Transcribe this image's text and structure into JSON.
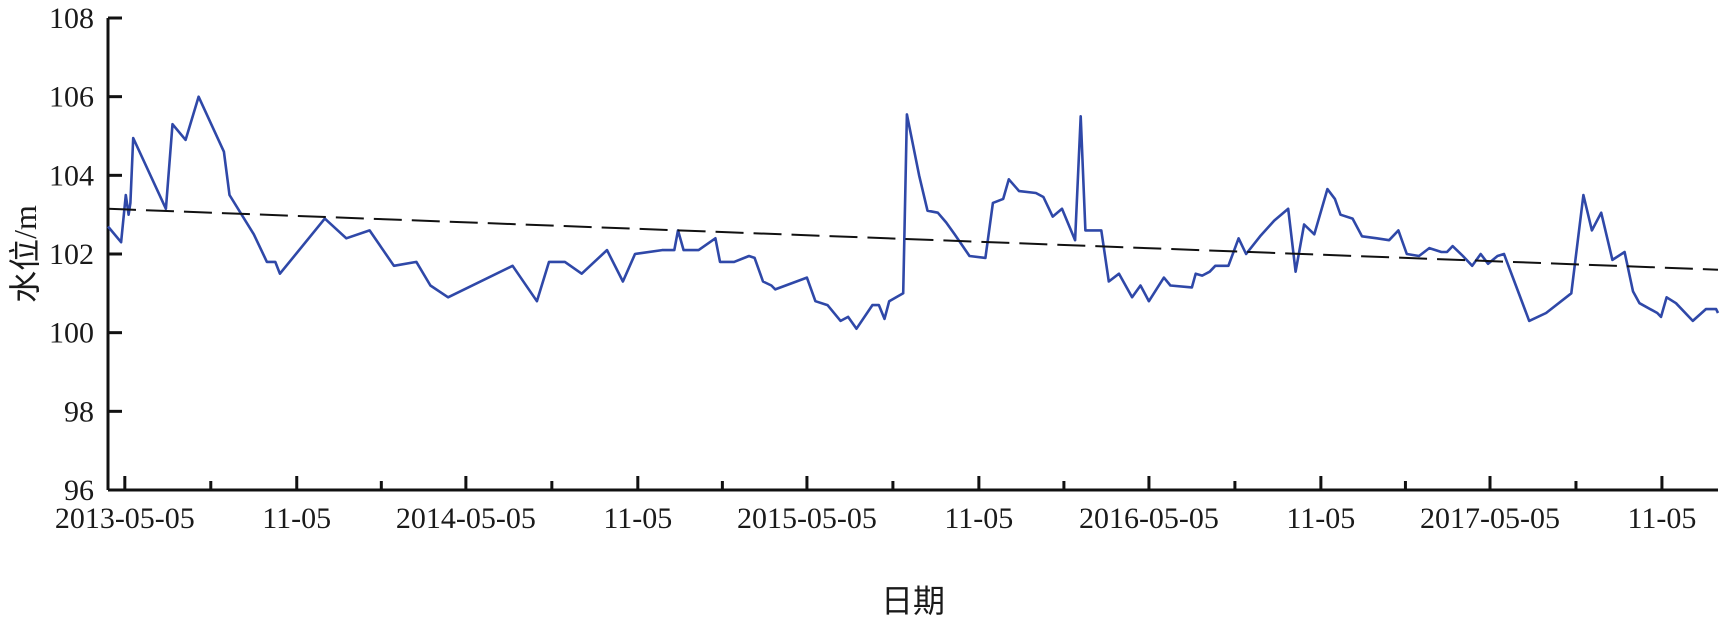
{
  "chart_data": {
    "type": "line",
    "title": "",
    "xlabel": "日期",
    "ylabel": "水位/m",
    "ylim": [
      96,
      108
    ],
    "xlim": [
      "2013-04-17",
      "2018-01-04"
    ],
    "yticks": [
      96,
      98,
      100,
      102,
      104,
      106,
      108
    ],
    "xticks": [
      {
        "date": "2013-05-05",
        "label": "2013-05-05"
      },
      {
        "date": "2013-11-05",
        "label": "11-05"
      },
      {
        "date": "2014-05-05",
        "label": "2014-05-05"
      },
      {
        "date": "2014-11-05",
        "label": "11-05"
      },
      {
        "date": "2015-05-05",
        "label": "2015-05-05"
      },
      {
        "date": "2015-11-05",
        "label": "11-05"
      },
      {
        "date": "2016-05-05",
        "label": "2016-05-05"
      },
      {
        "date": "2016-11-05",
        "label": "11-05"
      },
      {
        "date": "2017-05-05",
        "label": "2017-05-05"
      },
      {
        "date": "2017-11-05",
        "label": "11-05"
      }
    ],
    "grid": false,
    "series": [
      {
        "color": "#2f48a8",
        "points": [
          [
            "2013-04-17",
            102.7
          ],
          [
            "2013-05-01",
            102.3
          ],
          [
            "2013-05-06",
            103.5
          ],
          [
            "2013-05-09",
            103.0
          ],
          [
            "2013-05-11",
            103.3
          ],
          [
            "2013-05-14",
            104.95
          ],
          [
            "2013-06-18",
            103.15
          ],
          [
            "2013-06-25",
            105.3
          ],
          [
            "2013-07-09",
            104.9
          ],
          [
            "2013-07-23",
            106.0
          ],
          [
            "2013-08-19",
            104.6
          ],
          [
            "2013-08-25",
            103.5
          ],
          [
            "2013-09-20",
            102.5
          ],
          [
            "2013-10-04",
            101.8
          ],
          [
            "2013-10-13",
            101.8
          ],
          [
            "2013-10-18",
            101.5
          ],
          [
            "2013-12-05",
            102.9
          ],
          [
            "2013-12-28",
            102.4
          ],
          [
            "2014-01-22",
            102.6
          ],
          [
            "2014-02-17",
            101.7
          ],
          [
            "2014-03-13",
            101.8
          ],
          [
            "2014-03-28",
            101.2
          ],
          [
            "2014-04-16",
            100.9
          ],
          [
            "2014-06-24",
            101.7
          ],
          [
            "2014-07-20",
            100.8
          ],
          [
            "2014-08-02",
            101.8
          ],
          [
            "2014-08-19",
            101.8
          ],
          [
            "2014-09-06",
            101.5
          ],
          [
            "2014-10-03",
            102.1
          ],
          [
            "2014-10-20",
            101.3
          ],
          [
            "2014-11-02",
            102.0
          ],
          [
            "2014-12-01",
            102.1
          ],
          [
            "2014-12-14",
            102.1
          ],
          [
            "2014-12-18",
            102.6
          ],
          [
            "2014-12-24",
            102.1
          ],
          [
            "2015-01-09",
            102.1
          ],
          [
            "2015-01-27",
            102.4
          ],
          [
            "2015-02-01",
            101.8
          ],
          [
            "2015-02-16",
            101.8
          ],
          [
            "2015-03-04",
            101.95
          ],
          [
            "2015-03-10",
            101.9
          ],
          [
            "2015-03-19",
            101.3
          ],
          [
            "2015-03-28",
            101.2
          ],
          [
            "2015-04-01",
            101.1
          ],
          [
            "2015-05-05",
            101.4
          ],
          [
            "2015-05-14",
            100.8
          ],
          [
            "2015-05-27",
            100.7
          ],
          [
            "2015-06-10",
            100.3
          ],
          [
            "2015-06-18",
            100.4
          ],
          [
            "2015-06-27",
            100.1
          ],
          [
            "2015-07-14",
            100.7
          ],
          [
            "2015-07-21",
            100.7
          ],
          [
            "2015-07-27",
            100.35
          ],
          [
            "2015-08-01",
            100.8
          ],
          [
            "2015-08-16",
            101.0
          ],
          [
            "2015-08-20",
            105.55
          ],
          [
            "2015-09-02",
            104.0
          ],
          [
            "2015-09-11",
            103.1
          ],
          [
            "2015-09-22",
            103.05
          ],
          [
            "2015-10-01",
            102.8
          ],
          [
            "2015-10-10",
            102.5
          ],
          [
            "2015-10-26",
            101.95
          ],
          [
            "2015-11-12",
            101.9
          ],
          [
            "2015-11-20",
            103.3
          ],
          [
            "2015-12-01",
            103.4
          ],
          [
            "2015-12-07",
            103.9
          ],
          [
            "2015-12-18",
            103.6
          ],
          [
            "2016-01-05",
            103.55
          ],
          [
            "2016-01-13",
            103.45
          ],
          [
            "2016-01-23",
            102.95
          ],
          [
            "2016-02-02",
            103.15
          ],
          [
            "2016-02-16",
            102.35
          ],
          [
            "2016-02-22",
            105.5
          ],
          [
            "2016-02-27",
            102.6
          ],
          [
            "2016-03-15",
            102.6
          ],
          [
            "2016-03-23",
            101.3
          ],
          [
            "2016-04-03",
            101.5
          ],
          [
            "2016-04-17",
            100.9
          ],
          [
            "2016-04-26",
            101.2
          ],
          [
            "2016-05-05",
            100.8
          ],
          [
            "2016-05-21",
            101.4
          ],
          [
            "2016-05-28",
            101.2
          ],
          [
            "2016-06-20",
            101.15
          ],
          [
            "2016-06-24",
            101.5
          ],
          [
            "2016-07-01",
            101.45
          ],
          [
            "2016-07-09",
            101.55
          ],
          [
            "2016-07-15",
            101.7
          ],
          [
            "2016-07-29",
            101.7
          ],
          [
            "2016-08-09",
            102.4
          ],
          [
            "2016-08-17",
            102.0
          ],
          [
            "2016-09-01",
            102.45
          ],
          [
            "2016-09-16",
            102.85
          ],
          [
            "2016-10-01",
            103.15
          ],
          [
            "2016-10-09",
            101.55
          ],
          [
            "2016-10-18",
            102.75
          ],
          [
            "2016-10-29",
            102.5
          ],
          [
            "2016-11-12",
            103.65
          ],
          [
            "2016-11-20",
            103.4
          ],
          [
            "2016-11-26",
            103.0
          ],
          [
            "2016-12-09",
            102.9
          ],
          [
            "2016-12-19",
            102.45
          ],
          [
            "2017-01-04",
            102.4
          ],
          [
            "2017-01-17",
            102.35
          ],
          [
            "2017-01-27",
            102.6
          ],
          [
            "2017-02-05",
            102.0
          ],
          [
            "2017-02-18",
            101.95
          ],
          [
            "2017-03-01",
            102.15
          ],
          [
            "2017-03-14",
            102.05
          ],
          [
            "2017-03-20",
            102.05
          ],
          [
            "2017-03-26",
            102.2
          ],
          [
            "2017-04-06",
            101.95
          ],
          [
            "2017-04-16",
            101.7
          ],
          [
            "2017-04-25",
            102.0
          ],
          [
            "2017-05-03",
            101.75
          ],
          [
            "2017-05-13",
            101.95
          ],
          [
            "2017-05-20",
            102.0
          ],
          [
            "2017-06-16",
            100.3
          ],
          [
            "2017-07-04",
            100.5
          ],
          [
            "2017-07-31",
            101.0
          ],
          [
            "2017-08-13",
            103.5
          ],
          [
            "2017-08-22",
            102.6
          ],
          [
            "2017-09-01",
            103.05
          ],
          [
            "2017-09-13",
            101.85
          ],
          [
            "2017-09-26",
            102.05
          ],
          [
            "2017-10-05",
            101.05
          ],
          [
            "2017-10-12",
            100.75
          ],
          [
            "2017-10-31",
            100.5
          ],
          [
            "2017-11-04",
            100.4
          ],
          [
            "2017-11-10",
            100.9
          ],
          [
            "2017-11-20",
            100.75
          ],
          [
            "2017-12-08",
            100.3
          ],
          [
            "2017-12-22",
            100.6
          ],
          [
            "2018-01-02",
            100.6
          ],
          [
            "2018-01-04",
            100.5
          ]
        ]
      },
      {
        "style": "dashed",
        "color": "#111111",
        "points": [
          [
            "2013-04-17",
            103.15
          ],
          [
            "2018-01-04",
            101.6
          ]
        ]
      }
    ]
  }
}
